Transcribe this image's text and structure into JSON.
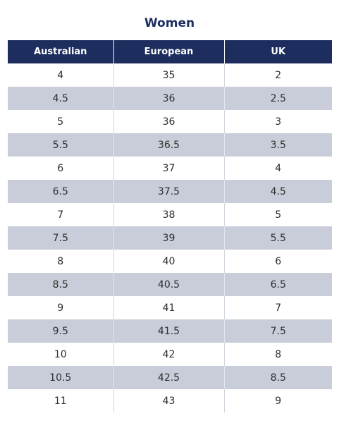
{
  "title": "Women",
  "columns": [
    "Australian",
    "European",
    "UK"
  ],
  "rows": [
    [
      "4",
      "35",
      "2"
    ],
    [
      "4.5",
      "36",
      "2.5"
    ],
    [
      "5",
      "36",
      "3"
    ],
    [
      "5.5",
      "36.5",
      "3.5"
    ],
    [
      "6",
      "37",
      "4"
    ],
    [
      "6.5",
      "37.5",
      "4.5"
    ],
    [
      "7",
      "38",
      "5"
    ],
    [
      "7.5",
      "39",
      "5.5"
    ],
    [
      "8",
      "40",
      "6"
    ],
    [
      "8.5",
      "40.5",
      "6.5"
    ],
    [
      "9",
      "41",
      "7"
    ],
    [
      "9.5",
      "41.5",
      "7.5"
    ],
    [
      "10",
      "42",
      "8"
    ],
    [
      "10.5",
      "42.5",
      "8.5"
    ],
    [
      "11",
      "43",
      "9"
    ]
  ],
  "colors": {
    "header_bg": "#1c2d5e",
    "title_text": "#1c2d5e",
    "shaded_row": "#c8cdd9",
    "text": "#2e2e2e"
  }
}
